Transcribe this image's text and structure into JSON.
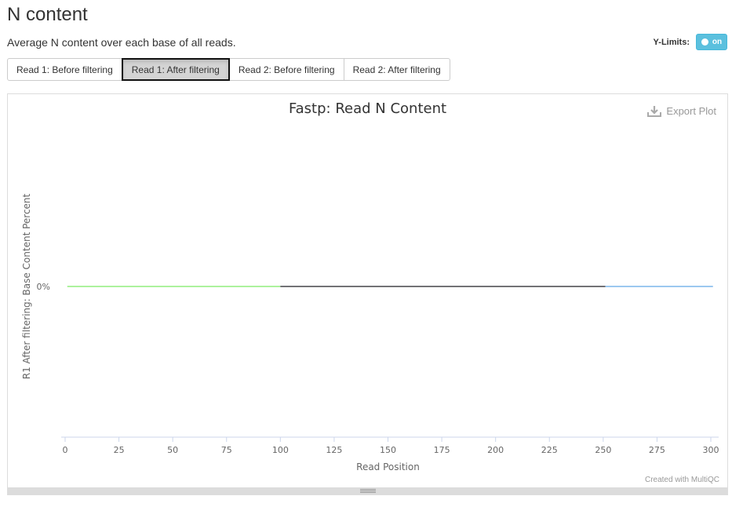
{
  "page": {
    "title": "N content",
    "subtitle": "Average N content over each base of all reads.",
    "ylimits_label": "Y-Limits:",
    "ylimits_toggle": "on"
  },
  "tabs": [
    {
      "label": "Read 1: Before filtering",
      "active": false
    },
    {
      "label": "Read 1: After filtering",
      "active": true
    },
    {
      "label": "Read 2: Before filtering",
      "active": false
    },
    {
      "label": "Read 2: After filtering",
      "active": false
    }
  ],
  "plot": {
    "export_label": "Export Plot",
    "credit": "Created with MultiQC"
  },
  "chart_data": {
    "type": "line",
    "title": "Fastp: Read N Content",
    "xlabel": "Read Position",
    "ylabel": "R1 After filtering: Base Content Percent",
    "xlim": [
      0,
      300
    ],
    "xticks": [
      0,
      25,
      50,
      75,
      100,
      125,
      150,
      175,
      200,
      225,
      250,
      275,
      300
    ],
    "yticks": [
      {
        "value": 0,
        "label": "0%"
      }
    ],
    "grid": false,
    "series": [
      {
        "color": "#90ed7d",
        "x": [
          1,
          100
        ],
        "y": [
          0,
          0
        ]
      },
      {
        "color": "#434348",
        "x": [
          100,
          251
        ],
        "y": [
          0,
          0
        ]
      },
      {
        "color": "#7cb5ec",
        "x": [
          251,
          301
        ],
        "y": [
          0,
          0
        ]
      }
    ]
  }
}
